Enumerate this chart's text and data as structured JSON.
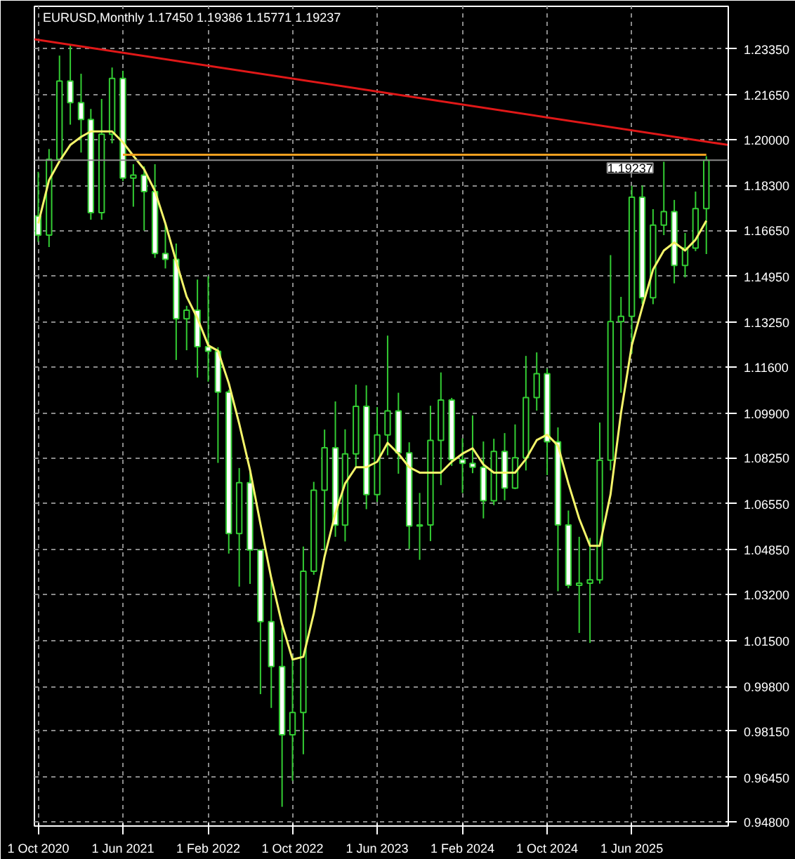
{
  "chart_data": {
    "type": "candlestick",
    "title": "EURUSD,Monthly  1.17450 1.19386 1.15771 1.19237",
    "color": "#33cc33",
    "x": [
      "2020-10",
      "2020-11",
      "2020-12",
      "2021-01",
      "2021-02",
      "2021-03",
      "2021-04",
      "2021-05",
      "2021-06",
      "2021-07",
      "2021-08",
      "2021-09",
      "2021-10",
      "2021-11",
      "2021-12",
      "2022-01",
      "2022-02",
      "2022-03",
      "2022-04",
      "2022-05",
      "2022-06",
      "2022-07",
      "2022-08",
      "2022-09",
      "2022-10",
      "2022-11",
      "2022-12",
      "2023-01",
      "2023-02",
      "2023-03",
      "2023-04",
      "2023-05",
      "2023-06",
      "2023-07",
      "2023-08",
      "2023-09",
      "2023-10",
      "2023-11",
      "2023-12",
      "2024-01",
      "2024-02",
      "2024-03",
      "2024-04",
      "2024-05",
      "2024-06",
      "2024-07",
      "2024-08",
      "2024-09",
      "2024-10",
      "2024-11",
      "2024-12",
      "2025-01",
      "2025-02",
      "2025-03",
      "2025-04",
      "2025-05",
      "2025-06",
      "2025-07",
      "2025-08",
      "2025-09",
      "2025-10",
      "2025-11",
      "2025-12",
      "2026-01"
    ],
    "ohlc": [
      [
        1.1718,
        1.1881,
        1.1622,
        1.1647
      ],
      [
        1.1647,
        1.1965,
        1.1603,
        1.1927
      ],
      [
        1.1927,
        1.231,
        1.1924,
        1.2216
      ],
      [
        1.2216,
        1.2349,
        1.2055,
        1.2136
      ],
      [
        1.2136,
        1.2243,
        1.1952,
        1.2074
      ],
      [
        1.2074,
        1.2113,
        1.1704,
        1.173
      ],
      [
        1.173,
        1.215,
        1.1704,
        1.202
      ],
      [
        1.202,
        1.2266,
        1.1986,
        1.2226
      ],
      [
        1.2226,
        1.2254,
        1.1847,
        1.1858
      ],
      [
        1.1858,
        1.1909,
        1.1752,
        1.1869
      ],
      [
        1.1869,
        1.1901,
        1.1664,
        1.1808
      ],
      [
        1.1808,
        1.1909,
        1.1563,
        1.1579
      ],
      [
        1.1579,
        1.1692,
        1.1524,
        1.1558
      ],
      [
        1.1558,
        1.1616,
        1.1186,
        1.1338
      ],
      [
        1.1338,
        1.1386,
        1.1222,
        1.137
      ],
      [
        1.137,
        1.1483,
        1.1121,
        1.1235
      ],
      [
        1.1235,
        1.1495,
        1.1106,
        1.1218
      ],
      [
        1.1218,
        1.1233,
        1.0806,
        1.1067
      ],
      [
        1.1067,
        1.1076,
        1.0471,
        1.0545
      ],
      [
        1.0545,
        1.0787,
        1.0349,
        1.0733
      ],
      [
        1.0733,
        1.0774,
        1.0359,
        1.0484
      ],
      [
        1.0484,
        1.0486,
        0.9952,
        1.022
      ],
      [
        1.022,
        1.0368,
        0.9901,
        1.0054
      ],
      [
        1.0054,
        1.0198,
        0.9536,
        0.9802
      ],
      [
        0.9802,
        1.0094,
        0.9632,
        0.9884
      ],
      [
        0.9884,
        1.0497,
        0.973,
        1.0406
      ],
      [
        1.0406,
        1.0736,
        1.0393,
        1.0705
      ],
      [
        1.0705,
        1.0929,
        1.0483,
        1.0862
      ],
      [
        1.0862,
        1.1033,
        1.0533,
        1.0576
      ],
      [
        1.0576,
        1.093,
        1.0516,
        1.0839
      ],
      [
        1.0839,
        1.1095,
        1.0788,
        1.1015
      ],
      [
        1.1015,
        1.1092,
        1.0635,
        1.0689
      ],
      [
        1.0689,
        1.1012,
        1.0662,
        1.0909
      ],
      [
        1.0909,
        1.1276,
        1.0834,
        1.0998
      ],
      [
        1.0998,
        1.1065,
        1.0766,
        1.0843
      ],
      [
        1.0843,
        1.0882,
        1.0488,
        1.0573
      ],
      [
        1.0573,
        1.0695,
        1.0448,
        1.0577
      ],
      [
        1.0577,
        1.1017,
        1.0517,
        1.0889
      ],
      [
        1.0889,
        1.114,
        1.0724,
        1.1038
      ],
      [
        1.1038,
        1.1046,
        1.0795,
        1.0818
      ],
      [
        1.0818,
        1.0897,
        1.0695,
        1.0804
      ],
      [
        1.0804,
        1.0981,
        1.0768,
        1.079
      ],
      [
        1.079,
        1.0885,
        1.0601,
        1.0666
      ],
      [
        1.0666,
        1.0895,
        1.065,
        1.0848
      ],
      [
        1.0848,
        1.0916,
        1.0668,
        1.0713
      ],
      [
        1.0713,
        1.0948,
        1.0709,
        1.0825
      ],
      [
        1.0825,
        1.1201,
        1.0778,
        1.1047
      ],
      [
        1.1047,
        1.1214,
        1.0999,
        1.1135
      ],
      [
        1.1135,
        1.1154,
        1.0761,
        1.0884
      ],
      [
        1.0884,
        1.0937,
        1.0332,
        1.0577
      ],
      [
        1.0577,
        1.063,
        1.0343,
        1.0354
      ],
      [
        1.0354,
        1.0533,
        1.0178,
        1.0362
      ],
      [
        1.0362,
        1.0529,
        1.0141,
        1.0374
      ],
      [
        1.0374,
        1.0955,
        1.036,
        1.0816
      ],
      [
        1.0816,
        1.1573,
        1.0778,
        1.1328
      ],
      [
        1.1328,
        1.1419,
        1.1065,
        1.1347
      ],
      [
        1.1347,
        1.1829,
        1.121,
        1.1787
      ],
      [
        1.1787,
        1.183,
        1.1392,
        1.1416
      ],
      [
        1.1416,
        1.1743,
        1.1392,
        1.1684
      ],
      [
        1.1684,
        1.1918,
        1.1647,
        1.1734
      ],
      [
        1.1734,
        1.1777,
        1.1469,
        1.1535
      ],
      [
        1.1535,
        1.1655,
        1.1491,
        1.1599
      ],
      [
        1.1599,
        1.1808,
        1.1588,
        1.1745
      ],
      [
        1.1745,
        1.19386,
        1.15771,
        1.19237
      ]
    ],
    "series": [
      {
        "type": "line",
        "color": "#f5f56a",
        "x": [
          "2020-10",
          "2020-11",
          "2020-12",
          "2021-01",
          "2021-02",
          "2021-03",
          "2021-04",
          "2021-05",
          "2021-06",
          "2021-07",
          "2021-08",
          "2021-09",
          "2021-10",
          "2021-11",
          "2021-12",
          "2022-01",
          "2022-02",
          "2022-03",
          "2022-04",
          "2022-05",
          "2022-06",
          "2022-07",
          "2022-08",
          "2022-09",
          "2022-10",
          "2022-11",
          "2022-12",
          "2023-01",
          "2023-02",
          "2023-03",
          "2023-04",
          "2023-05",
          "2023-06",
          "2023-07",
          "2023-08",
          "2023-09",
          "2023-10",
          "2023-11",
          "2023-12",
          "2024-01",
          "2024-02",
          "2024-03",
          "2024-04",
          "2024-05",
          "2024-06",
          "2024-07",
          "2024-08",
          "2024-09",
          "2024-10",
          "2024-11",
          "2024-12",
          "2025-01",
          "2025-02",
          "2025-03",
          "2025-04",
          "2025-05",
          "2025-06",
          "2025-07",
          "2025-08",
          "2025-09",
          "2025-10",
          "2025-11",
          "2025-12",
          "2026-01"
        ],
        "values": [
          1.169,
          1.185,
          1.192,
          1.198,
          1.201,
          1.203,
          1.203,
          1.203,
          1.199,
          1.194,
          1.189,
          1.181,
          1.169,
          1.155,
          1.142,
          1.134,
          1.124,
          1.122,
          1.11,
          1.095,
          1.078,
          1.058,
          1.038,
          1.021,
          1.008,
          1.009,
          1.025,
          1.046,
          1.062,
          1.073,
          1.079,
          1.079,
          1.081,
          1.088,
          1.084,
          1.079,
          1.077,
          1.077,
          1.077,
          1.081,
          1.084,
          1.086,
          1.08,
          1.077,
          1.077,
          1.077,
          1.082,
          1.089,
          1.091,
          1.087,
          1.073,
          1.06,
          1.05,
          1.05,
          1.069,
          1.099,
          1.124,
          1.138,
          1.152,
          1.159,
          1.162,
          1.159,
          1.163,
          1.17
        ]
      },
      {
        "type": "line",
        "color": "#e01818",
        "x": [
          "2020-09-20",
          "2026-03-05"
        ],
        "values": [
          1.237,
          1.198
        ]
      },
      {
        "type": "line",
        "color": "#f0a020",
        "x": [
          "2021-06",
          "2026-01"
        ],
        "values": [
          1.1944,
          1.1944
        ]
      }
    ],
    "xlim": [
      "2020-09-20",
      "2026-03-05"
    ],
    "ylim": [
      0.9465,
      1.2492
    ],
    "xticks": [
      {
        "value": "2020-10-01",
        "label": "1 Oct 2020"
      },
      {
        "value": "2021-06-01",
        "label": "1 Jun 2021"
      },
      {
        "value": "2022-02-01",
        "label": "1 Feb 2022"
      },
      {
        "value": "2022-10-01",
        "label": "1 Oct 2022"
      },
      {
        "value": "2023-06-01",
        "label": "1 Jun 2023"
      },
      {
        "value": "2024-02-01",
        "label": "1 Feb 2024"
      },
      {
        "value": "2024-10-01",
        "label": "1 Oct 2024"
      },
      {
        "value": "2025-06-01",
        "label": "1 Jun 2025"
      }
    ],
    "yticks": [
      {
        "value": 1.2335,
        "label": "1.23350"
      },
      {
        "value": 1.2165,
        "label": "1.21650"
      },
      {
        "value": 1.2,
        "label": "1.20000"
      },
      {
        "value": 1.183,
        "label": "1.18300"
      },
      {
        "value": 1.1665,
        "label": "1.16650"
      },
      {
        "value": 1.1495,
        "label": "1.14950"
      },
      {
        "value": 1.1325,
        "label": "1.13250"
      },
      {
        "value": 1.116,
        "label": "1.11600"
      },
      {
        "value": 1.099,
        "label": "1.09900"
      },
      {
        "value": 1.0825,
        "label": "1.08250"
      },
      {
        "value": 1.0655,
        "label": "1.06550"
      },
      {
        "value": 1.0485,
        "label": "1.04850"
      },
      {
        "value": 1.032,
        "label": "1.03200"
      },
      {
        "value": 1.015,
        "label": "1.01500"
      },
      {
        "value": 0.998,
        "label": "0.99800"
      },
      {
        "value": 0.9815,
        "label": "0.98150"
      },
      {
        "value": 0.9645,
        "label": "0.96450"
      },
      {
        "value": 0.948,
        "label": "0.94800"
      }
    ],
    "ref_lines": [
      {
        "axis": "y",
        "value": 1.19237,
        "label": "1.19237",
        "color": "#8a8a8a"
      }
    ],
    "grid": true
  }
}
